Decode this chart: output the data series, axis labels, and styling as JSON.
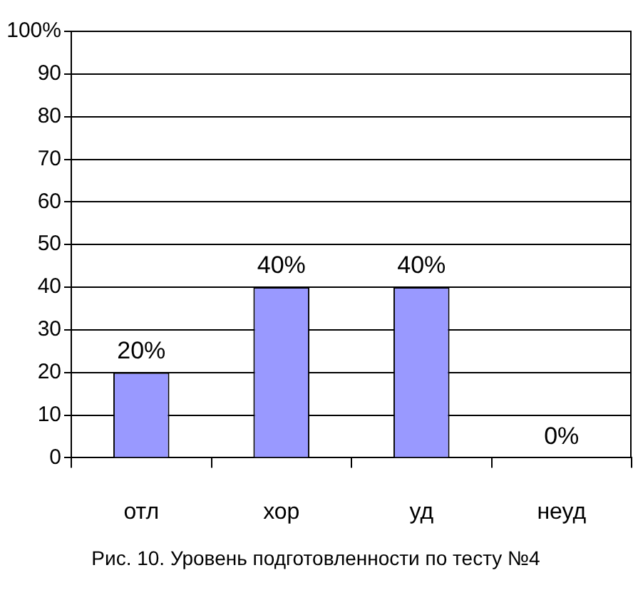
{
  "chart_data": {
    "type": "bar",
    "title": "Рис. 10. Уровень подготовленности по тесту №4",
    "categories": [
      "отл",
      "хор",
      "уд",
      "неуд"
    ],
    "values": [
      20,
      40,
      40,
      0
    ],
    "value_labels": [
      "20%",
      "40%",
      "40%",
      "0%"
    ],
    "color": "#9999ff",
    "ylim": [
      0,
      100
    ],
    "yticks": [
      0,
      10,
      20,
      30,
      40,
      50,
      60,
      70,
      80,
      90,
      {
        "value": 100,
        "label": "100%"
      }
    ],
    "grid": "y"
  }
}
